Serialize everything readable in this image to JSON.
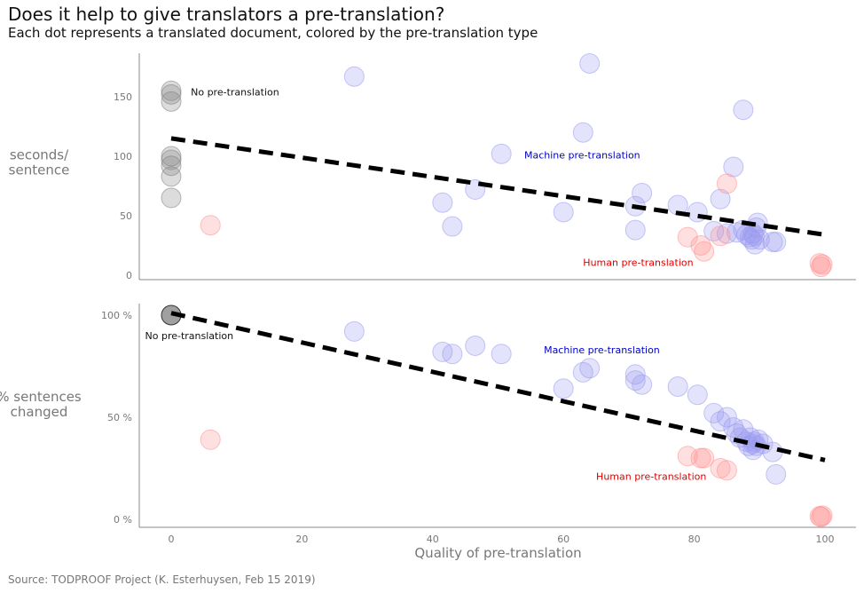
{
  "title": "Does it help to give translators a pre-translation?",
  "subtitle": "Each dot represents a translated document, colored by the pre-translation type",
  "source": "Source: TODPROOF Project (K. Esterhuysen, Feb 15 2019)",
  "colors": {
    "none": "#808080",
    "machine": "#9a9af0",
    "human": "#ff9090",
    "trend": "#000000",
    "machine_label": "#0000cc",
    "human_label": "#dd0000",
    "axis": "#888888"
  },
  "chart_data": [
    {
      "type": "scatter",
      "title": "",
      "xlabel": "",
      "ylabel": "seconds/\nsentence",
      "ylabel_lines": [
        "seconds/",
        "sentence"
      ],
      "xlim": [
        -5,
        105
      ],
      "ylim": [
        -3,
        188
      ],
      "yticks": [
        0,
        50,
        100,
        150
      ],
      "ytick_labels": [
        "0",
        "50",
        "100",
        "150"
      ],
      "series": [
        {
          "name": "No pre-translation",
          "color_key": "none",
          "points": [
            [
              0,
              155
            ],
            [
              0,
              152
            ],
            [
              0,
              146
            ],
            [
              0,
              100
            ],
            [
              0,
              97
            ],
            [
              0,
              92
            ],
            [
              0,
              83
            ],
            [
              0,
              65
            ]
          ]
        },
        {
          "name": "Machine pre-translation",
          "color_key": "machine",
          "points": [
            [
              28,
              167
            ],
            [
              64,
              178
            ],
            [
              63,
              120
            ],
            [
              50.5,
              102
            ],
            [
              41.5,
              61
            ],
            [
              43,
              41
            ],
            [
              46.5,
              72
            ],
            [
              60,
              53
            ],
            [
              71,
              58
            ],
            [
              72,
              69
            ],
            [
              71,
              38
            ],
            [
              77.5,
              59
            ],
            [
              80.5,
              53
            ],
            [
              84,
              64
            ],
            [
              86,
              91
            ],
            [
              87.5,
              139
            ],
            [
              83,
              37
            ],
            [
              85,
              35
            ],
            [
              86.5,
              36
            ],
            [
              87.5,
              38
            ],
            [
              88,
              34
            ],
            [
              88.5,
              32
            ],
            [
              89,
              35
            ],
            [
              89.5,
              40
            ],
            [
              88.8,
              30
            ],
            [
              89.2,
              33
            ],
            [
              89.7,
              44
            ],
            [
              89.3,
              26
            ],
            [
              90,
              30
            ],
            [
              92,
              28
            ],
            [
              92.5,
              28
            ]
          ]
        },
        {
          "name": "Human pre-translation",
          "color_key": "human",
          "points": [
            [
              6,
              42
            ],
            [
              79,
              32
            ],
            [
              81,
              25
            ],
            [
              81.5,
              20
            ],
            [
              84,
              33
            ],
            [
              85,
              77
            ],
            [
              99.2,
              10
            ],
            [
              99.4,
              7
            ],
            [
              99.6,
              9
            ]
          ]
        }
      ],
      "trend": {
        "x": [
          0,
          100
        ],
        "y": [
          115,
          34
        ]
      },
      "annotations": [
        {
          "text": "No pre-translation",
          "x": 3,
          "y": 154,
          "color_key": "none_label"
        },
        {
          "text": "Machine pre-translation",
          "x": 54,
          "y": 101,
          "color_key": "machine_label"
        },
        {
          "text": "Human pre-translation",
          "x": 63,
          "y": 11,
          "color_key": "human_label"
        }
      ]
    },
    {
      "type": "scatter",
      "title": "",
      "xlabel": "Quality of pre-translation",
      "ylabel": "% sentences\nchanged",
      "ylabel_lines": [
        "% sentences",
        "changed"
      ],
      "xlim": [
        -5,
        105
      ],
      "ylim": [
        -3,
        108
      ],
      "xticks": [
        0,
        20,
        40,
        60,
        80,
        100
      ],
      "xtick_labels": [
        "0",
        "20",
        "40",
        "60",
        "80",
        "100"
      ],
      "yticks": [
        0,
        50,
        100
      ],
      "ytick_labels": [
        "0 %",
        "50 %",
        "100 %"
      ],
      "series": [
        {
          "name": "No pre-translation",
          "color_key": "none",
          "points": [
            [
              0,
              100
            ]
          ]
        },
        {
          "name": "Machine pre-translation",
          "color_key": "machine",
          "points": [
            [
              28,
              92
            ],
            [
              41.5,
              82
            ],
            [
              43,
              81
            ],
            [
              46.5,
              85
            ],
            [
              50.5,
              81
            ],
            [
              60,
              64
            ],
            [
              63,
              72
            ],
            [
              64,
              74
            ],
            [
              71,
              71
            ],
            [
              71,
              68
            ],
            [
              72,
              66
            ],
            [
              77.5,
              65
            ],
            [
              80.5,
              61
            ],
            [
              83,
              52
            ],
            [
              84,
              48
            ],
            [
              85,
              50
            ],
            [
              86,
              45
            ],
            [
              86.5,
              42
            ],
            [
              87,
              40
            ],
            [
              87.5,
              44
            ],
            [
              88,
              38
            ],
            [
              88.3,
              36
            ],
            [
              88.6,
              40
            ],
            [
              89,
              37
            ],
            [
              89.2,
              38
            ],
            [
              89.5,
              36
            ],
            [
              89.8,
              39
            ],
            [
              89,
              34
            ],
            [
              90.5,
              37
            ],
            [
              92,
              33
            ],
            [
              92.5,
              22
            ]
          ]
        },
        {
          "name": "Human pre-translation",
          "color_key": "human",
          "points": [
            [
              6,
              39
            ],
            [
              79,
              31
            ],
            [
              81,
              30
            ],
            [
              81.5,
              30
            ],
            [
              84,
              25
            ],
            [
              85,
              24
            ],
            [
              99.2,
              1.5
            ],
            [
              99.4,
              1.2
            ],
            [
              99.6,
              1.8
            ]
          ]
        }
      ],
      "trend": {
        "x": [
          0,
          100
        ],
        "y": [
          101,
          29
        ]
      },
      "annotations": [
        {
          "text": "No pre-translation",
          "x": -4,
          "y": 90,
          "color_key": "none_label"
        },
        {
          "text": "Machine pre-translation",
          "x": 57,
          "y": 83,
          "color_key": "machine_label"
        },
        {
          "text": "Human pre-translation",
          "x": 65,
          "y": 21,
          "color_key": "human_label"
        }
      ]
    }
  ]
}
